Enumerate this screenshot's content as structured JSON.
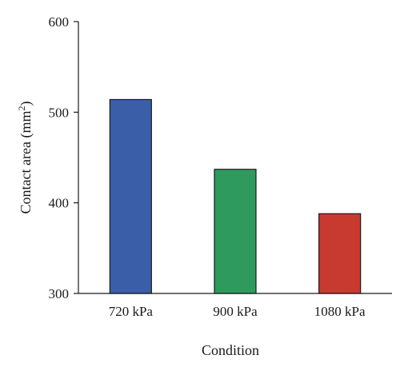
{
  "chart_data": {
    "type": "bar",
    "title": "",
    "xlabel": "Condition",
    "ylabel_main": "Contact area (mm",
    "ylabel_sup": "2",
    "ylabel_close": ")",
    "categories": [
      "720 kPa",
      "900 kPa",
      "1080 kPa"
    ],
    "values": [
      514,
      437,
      388
    ],
    "colors": [
      "#3a5fa8",
      "#2e9a5e",
      "#c83a30"
    ],
    "ylim": [
      300,
      600
    ],
    "yticks": [
      300,
      400,
      500,
      600
    ],
    "grid": false,
    "legend": "none"
  }
}
